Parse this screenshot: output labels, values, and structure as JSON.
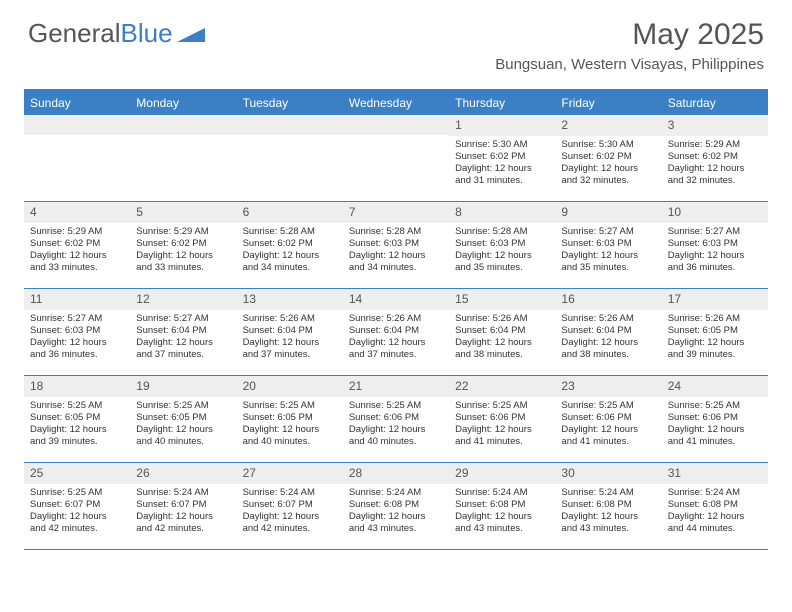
{
  "logo": {
    "text1": "General",
    "text2": "Blue"
  },
  "title": "May 2025",
  "location": "Bungsuan, Western Visayas, Philippines",
  "colors": {
    "accent": "#3b7fc4",
    "header_text": "#ffffff",
    "daynum_bg": "#eeeeee",
    "body_text": "#333333",
    "muted_text": "#555555"
  },
  "day_names": [
    "Sunday",
    "Monday",
    "Tuesday",
    "Wednesday",
    "Thursday",
    "Friday",
    "Saturday"
  ],
  "weeks": [
    [
      {
        "n": "",
        "sr": "",
        "ss": "",
        "dl": ""
      },
      {
        "n": "",
        "sr": "",
        "ss": "",
        "dl": ""
      },
      {
        "n": "",
        "sr": "",
        "ss": "",
        "dl": ""
      },
      {
        "n": "",
        "sr": "",
        "ss": "",
        "dl": ""
      },
      {
        "n": "1",
        "sr": "Sunrise: 5:30 AM",
        "ss": "Sunset: 6:02 PM",
        "dl": "Daylight: 12 hours and 31 minutes."
      },
      {
        "n": "2",
        "sr": "Sunrise: 5:30 AM",
        "ss": "Sunset: 6:02 PM",
        "dl": "Daylight: 12 hours and 32 minutes."
      },
      {
        "n": "3",
        "sr": "Sunrise: 5:29 AM",
        "ss": "Sunset: 6:02 PM",
        "dl": "Daylight: 12 hours and 32 minutes."
      }
    ],
    [
      {
        "n": "4",
        "sr": "Sunrise: 5:29 AM",
        "ss": "Sunset: 6:02 PM",
        "dl": "Daylight: 12 hours and 33 minutes."
      },
      {
        "n": "5",
        "sr": "Sunrise: 5:29 AM",
        "ss": "Sunset: 6:02 PM",
        "dl": "Daylight: 12 hours and 33 minutes."
      },
      {
        "n": "6",
        "sr": "Sunrise: 5:28 AM",
        "ss": "Sunset: 6:02 PM",
        "dl": "Daylight: 12 hours and 34 minutes."
      },
      {
        "n": "7",
        "sr": "Sunrise: 5:28 AM",
        "ss": "Sunset: 6:03 PM",
        "dl": "Daylight: 12 hours and 34 minutes."
      },
      {
        "n": "8",
        "sr": "Sunrise: 5:28 AM",
        "ss": "Sunset: 6:03 PM",
        "dl": "Daylight: 12 hours and 35 minutes."
      },
      {
        "n": "9",
        "sr": "Sunrise: 5:27 AM",
        "ss": "Sunset: 6:03 PM",
        "dl": "Daylight: 12 hours and 35 minutes."
      },
      {
        "n": "10",
        "sr": "Sunrise: 5:27 AM",
        "ss": "Sunset: 6:03 PM",
        "dl": "Daylight: 12 hours and 36 minutes."
      }
    ],
    [
      {
        "n": "11",
        "sr": "Sunrise: 5:27 AM",
        "ss": "Sunset: 6:03 PM",
        "dl": "Daylight: 12 hours and 36 minutes."
      },
      {
        "n": "12",
        "sr": "Sunrise: 5:27 AM",
        "ss": "Sunset: 6:04 PM",
        "dl": "Daylight: 12 hours and 37 minutes."
      },
      {
        "n": "13",
        "sr": "Sunrise: 5:26 AM",
        "ss": "Sunset: 6:04 PM",
        "dl": "Daylight: 12 hours and 37 minutes."
      },
      {
        "n": "14",
        "sr": "Sunrise: 5:26 AM",
        "ss": "Sunset: 6:04 PM",
        "dl": "Daylight: 12 hours and 37 minutes."
      },
      {
        "n": "15",
        "sr": "Sunrise: 5:26 AM",
        "ss": "Sunset: 6:04 PM",
        "dl": "Daylight: 12 hours and 38 minutes."
      },
      {
        "n": "16",
        "sr": "Sunrise: 5:26 AM",
        "ss": "Sunset: 6:04 PM",
        "dl": "Daylight: 12 hours and 38 minutes."
      },
      {
        "n": "17",
        "sr": "Sunrise: 5:26 AM",
        "ss": "Sunset: 6:05 PM",
        "dl": "Daylight: 12 hours and 39 minutes."
      }
    ],
    [
      {
        "n": "18",
        "sr": "Sunrise: 5:25 AM",
        "ss": "Sunset: 6:05 PM",
        "dl": "Daylight: 12 hours and 39 minutes."
      },
      {
        "n": "19",
        "sr": "Sunrise: 5:25 AM",
        "ss": "Sunset: 6:05 PM",
        "dl": "Daylight: 12 hours and 40 minutes."
      },
      {
        "n": "20",
        "sr": "Sunrise: 5:25 AM",
        "ss": "Sunset: 6:05 PM",
        "dl": "Daylight: 12 hours and 40 minutes."
      },
      {
        "n": "21",
        "sr": "Sunrise: 5:25 AM",
        "ss": "Sunset: 6:06 PM",
        "dl": "Daylight: 12 hours and 40 minutes."
      },
      {
        "n": "22",
        "sr": "Sunrise: 5:25 AM",
        "ss": "Sunset: 6:06 PM",
        "dl": "Daylight: 12 hours and 41 minutes."
      },
      {
        "n": "23",
        "sr": "Sunrise: 5:25 AM",
        "ss": "Sunset: 6:06 PM",
        "dl": "Daylight: 12 hours and 41 minutes."
      },
      {
        "n": "24",
        "sr": "Sunrise: 5:25 AM",
        "ss": "Sunset: 6:06 PM",
        "dl": "Daylight: 12 hours and 41 minutes."
      }
    ],
    [
      {
        "n": "25",
        "sr": "Sunrise: 5:25 AM",
        "ss": "Sunset: 6:07 PM",
        "dl": "Daylight: 12 hours and 42 minutes."
      },
      {
        "n": "26",
        "sr": "Sunrise: 5:24 AM",
        "ss": "Sunset: 6:07 PM",
        "dl": "Daylight: 12 hours and 42 minutes."
      },
      {
        "n": "27",
        "sr": "Sunrise: 5:24 AM",
        "ss": "Sunset: 6:07 PM",
        "dl": "Daylight: 12 hours and 42 minutes."
      },
      {
        "n": "28",
        "sr": "Sunrise: 5:24 AM",
        "ss": "Sunset: 6:08 PM",
        "dl": "Daylight: 12 hours and 43 minutes."
      },
      {
        "n": "29",
        "sr": "Sunrise: 5:24 AM",
        "ss": "Sunset: 6:08 PM",
        "dl": "Daylight: 12 hours and 43 minutes."
      },
      {
        "n": "30",
        "sr": "Sunrise: 5:24 AM",
        "ss": "Sunset: 6:08 PM",
        "dl": "Daylight: 12 hours and 43 minutes."
      },
      {
        "n": "31",
        "sr": "Sunrise: 5:24 AM",
        "ss": "Sunset: 6:08 PM",
        "dl": "Daylight: 12 hours and 44 minutes."
      }
    ]
  ]
}
